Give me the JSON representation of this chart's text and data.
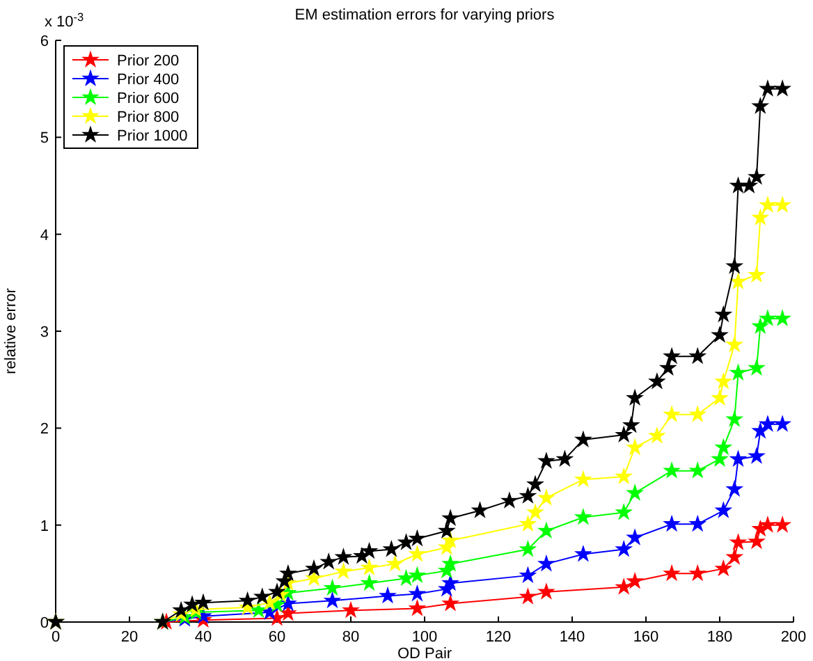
{
  "chart_data": {
    "type": "line",
    "title": "EM estimation errors for varying priors",
    "xlabel": "OD Pair",
    "ylabel": "relative error",
    "annotations": [
      "x 10$^{-3}$"
    ],
    "xlim": [
      0,
      200
    ],
    "xticks": [
      0,
      20,
      40,
      60,
      80,
      100,
      120,
      140,
      160,
      180,
      200
    ],
    "ylim": [
      0,
      6
    ],
    "yticks": [
      0,
      1,
      2,
      3,
      4,
      5,
      6
    ],
    "grid": false,
    "legend": "top left",
    "marker": "star",
    "line_style": "solid",
    "series": [
      {
        "name": "Prior 200",
        "color": "#ff0000",
        "x": [
          0,
          30,
          40,
          60,
          63,
          80,
          98,
          107,
          128,
          133,
          154,
          157,
          167,
          174,
          181,
          184,
          185,
          190,
          191,
          193,
          197
        ],
        "values": [
          0,
          0,
          0.02,
          0.04,
          0.09,
          0.12,
          0.14,
          0.19,
          0.26,
          0.31,
          0.36,
          0.42,
          0.5,
          0.5,
          0.55,
          0.67,
          0.82,
          0.83,
          0.96,
          1,
          1
        ]
      },
      {
        "name": "Prior 400",
        "color": "#0000ff",
        "x": [
          0,
          29,
          35,
          40,
          58,
          63,
          75,
          90,
          98,
          106,
          107,
          128,
          133,
          143,
          154,
          157,
          167,
          174,
          181,
          184,
          185,
          190,
          191,
          193,
          197
        ],
        "values": [
          0,
          0,
          0.03,
          0.06,
          0.1,
          0.19,
          0.22,
          0.27,
          0.29,
          0.34,
          0.4,
          0.48,
          0.6,
          0.7,
          0.75,
          0.87,
          1.01,
          1.01,
          1.15,
          1.37,
          1.68,
          1.71,
          1.97,
          2.04,
          2.04
        ]
      },
      {
        "name": "Prior 600",
        "color": "#00ff00",
        "x": [
          0,
          29,
          35,
          38,
          55,
          60,
          63,
          75,
          85,
          95,
          98,
          106,
          107,
          128,
          133,
          143,
          154,
          157,
          167,
          174,
          180,
          181,
          184,
          185,
          190,
          191,
          193,
          197
        ],
        "values": [
          0,
          0,
          0.05,
          0.1,
          0.12,
          0.18,
          0.3,
          0.35,
          0.4,
          0.45,
          0.48,
          0.53,
          0.6,
          0.75,
          0.94,
          1.08,
          1.13,
          1.33,
          1.56,
          1.56,
          1.68,
          1.8,
          2.09,
          2.57,
          2.62,
          3.05,
          3.13,
          3.13
        ]
      },
      {
        "name": "Prior 800",
        "color": "#ffff00",
        "x": [
          0,
          29,
          34,
          38,
          52,
          58,
          61,
          63,
          70,
          78,
          85,
          92,
          98,
          106,
          107,
          128,
          130,
          133,
          143,
          154,
          157,
          163,
          167,
          174,
          180,
          181,
          184,
          185,
          190,
          191,
          193,
          197
        ],
        "values": [
          0,
          0,
          0.08,
          0.13,
          0.15,
          0.2,
          0.28,
          0.4,
          0.45,
          0.52,
          0.56,
          0.6,
          0.7,
          0.77,
          0.84,
          1.01,
          1.13,
          1.28,
          1.47,
          1.5,
          1.8,
          1.92,
          2.14,
          2.14,
          2.31,
          2.48,
          2.86,
          3.51,
          3.58,
          4.17,
          4.3,
          4.3
        ]
      },
      {
        "name": "Prior 1000",
        "color": "#000000",
        "x": [
          0,
          29,
          34,
          37,
          40,
          52,
          56,
          60,
          62,
          63,
          70,
          74,
          78,
          83,
          85,
          91,
          95,
          98,
          106,
          107,
          115,
          123,
          128,
          130,
          133,
          138,
          143,
          154,
          156,
          157,
          163,
          166,
          167,
          174,
          180,
          181,
          184,
          185,
          188,
          190,
          191,
          193,
          197
        ],
        "values": [
          0,
          0,
          0.12,
          0.18,
          0.2,
          0.22,
          0.26,
          0.31,
          0.42,
          0.5,
          0.55,
          0.62,
          0.67,
          0.68,
          0.73,
          0.75,
          0.82,
          0.86,
          0.94,
          1.07,
          1.15,
          1.25,
          1.3,
          1.42,
          1.66,
          1.68,
          1.88,
          1.93,
          2.03,
          2.31,
          2.48,
          2.62,
          2.74,
          2.74,
          2.96,
          3.17,
          3.67,
          4.5,
          4.5,
          4.59,
          5.32,
          5.5,
          5.5
        ]
      }
    ]
  }
}
